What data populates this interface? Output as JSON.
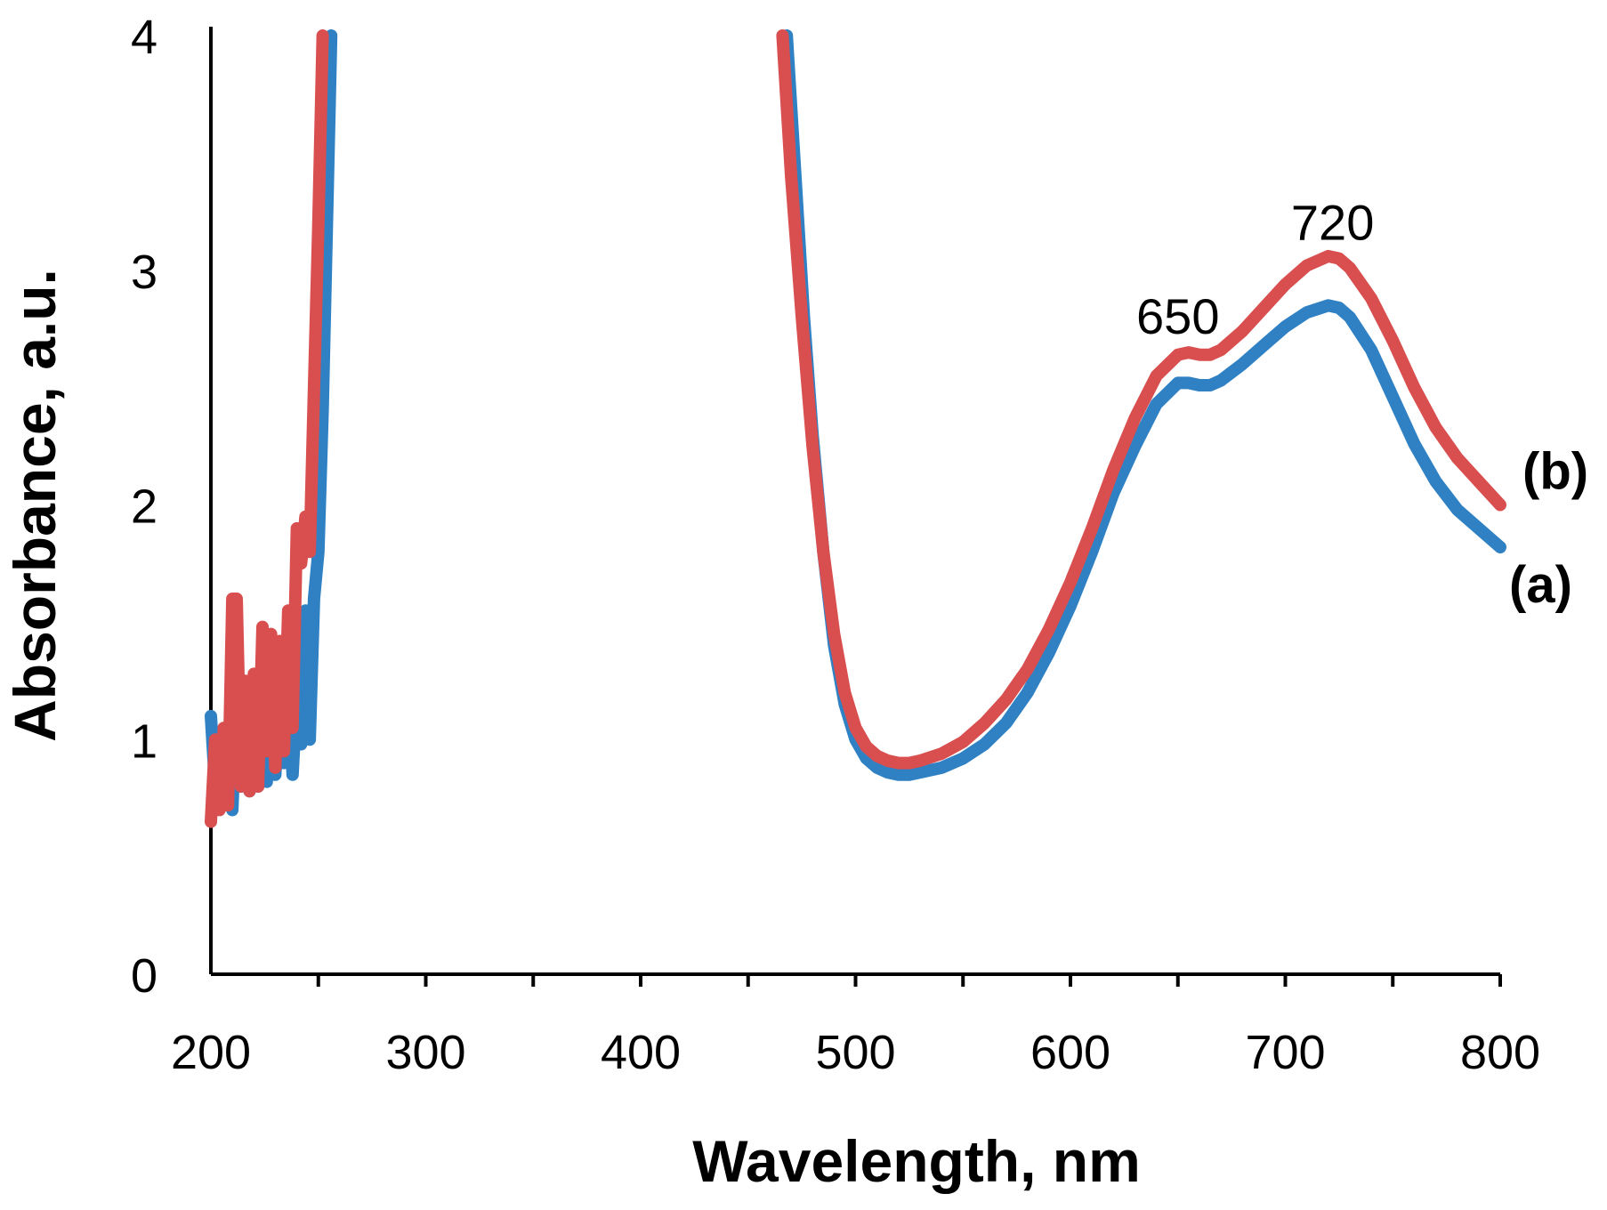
{
  "chart_data": {
    "type": "line",
    "title": "",
    "xlabel": "Wavelength, nm",
    "ylabel": "Absorbance, a.u.",
    "xlim": [
      200,
      800
    ],
    "ylim": [
      0,
      4
    ],
    "grid": false,
    "x_tick_labels": [
      "200",
      "300",
      "400",
      "500",
      "600",
      "700",
      "800"
    ],
    "x_tick_values": [
      200,
      300,
      400,
      500,
      600,
      700,
      800
    ],
    "x_minor_ticks": [
      250,
      350,
      450,
      550,
      650,
      750
    ],
    "y_tick_labels": [
      "0",
      "1",
      "2",
      "3",
      "4"
    ],
    "y_tick_values": [
      0,
      1,
      2,
      3,
      4
    ],
    "annotations": [
      {
        "text": "650",
        "x": 650,
        "y": 2.73
      },
      {
        "text": "720",
        "x": 722,
        "y": 3.13
      }
    ],
    "series": [
      {
        "name": "(a)",
        "color": "#2f81c3",
        "segments": [
          [
            [
              200,
              1.1
            ],
            [
              202,
              0.8
            ],
            [
              204,
              1.0
            ],
            [
              206,
              0.75
            ],
            [
              208,
              1.05
            ],
            [
              210,
              0.7
            ],
            [
              212,
              1.2
            ],
            [
              214,
              0.8
            ],
            [
              216,
              1.2
            ],
            [
              218,
              0.78
            ],
            [
              220,
              1.1
            ],
            [
              222,
              0.8
            ],
            [
              224,
              1.15
            ],
            [
              226,
              0.82
            ],
            [
              228,
              1.3
            ],
            [
              230,
              0.85
            ],
            [
              232,
              1.2
            ],
            [
              234,
              0.9
            ],
            [
              236,
              1.35
            ],
            [
              238,
              0.85
            ],
            [
              240,
              1.2
            ],
            [
              242,
              0.98
            ],
            [
              244,
              1.55
            ],
            [
              246,
              1.0
            ],
            [
              248,
              1.6
            ],
            [
              250,
              1.8
            ],
            [
              252,
              2.4
            ],
            [
              254,
              3.2
            ],
            [
              256,
              4.0
            ]
          ],
          [
            [
              468,
              4.0
            ],
            [
              472,
              3.4
            ],
            [
              476,
              2.8
            ],
            [
              480,
              2.3
            ],
            [
              485,
              1.8
            ],
            [
              490,
              1.4
            ],
            [
              495,
              1.15
            ],
            [
              500,
              1.0
            ],
            [
              505,
              0.92
            ],
            [
              510,
              0.88
            ],
            [
              515,
              0.86
            ],
            [
              520,
              0.85
            ],
            [
              525,
              0.85
            ],
            [
              530,
              0.86
            ],
            [
              540,
              0.88
            ],
            [
              550,
              0.92
            ],
            [
              560,
              0.98
            ],
            [
              570,
              1.07
            ],
            [
              580,
              1.2
            ],
            [
              590,
              1.37
            ],
            [
              600,
              1.57
            ],
            [
              610,
              1.8
            ],
            [
              620,
              2.05
            ],
            [
              630,
              2.25
            ],
            [
              640,
              2.43
            ],
            [
              650,
              2.52
            ],
            [
              655,
              2.52
            ],
            [
              660,
              2.51
            ],
            [
              665,
              2.51
            ],
            [
              670,
              2.53
            ],
            [
              680,
              2.6
            ],
            [
              690,
              2.68
            ],
            [
              700,
              2.76
            ],
            [
              710,
              2.82
            ],
            [
              720,
              2.85
            ],
            [
              725,
              2.84
            ],
            [
              730,
              2.8
            ],
            [
              740,
              2.66
            ],
            [
              750,
              2.46
            ],
            [
              760,
              2.26
            ],
            [
              770,
              2.1
            ],
            [
              780,
              1.98
            ],
            [
              790,
              1.9
            ],
            [
              800,
              1.82
            ]
          ]
        ]
      },
      {
        "name": "(b)",
        "color": "#d94f4f",
        "segments": [
          [
            [
              200,
              0.65
            ],
            [
              202,
              1.0
            ],
            [
              204,
              0.7
            ],
            [
              206,
              1.05
            ],
            [
              208,
              0.72
            ],
            [
              210,
              1.6
            ],
            [
              212,
              1.6
            ],
            [
              214,
              0.8
            ],
            [
              216,
              1.25
            ],
            [
              218,
              0.78
            ],
            [
              220,
              1.28
            ],
            [
              222,
              0.8
            ],
            [
              224,
              1.48
            ],
            [
              226,
              0.95
            ],
            [
              228,
              1.45
            ],
            [
              230,
              0.88
            ],
            [
              232,
              1.42
            ],
            [
              234,
              0.95
            ],
            [
              236,
              1.55
            ],
            [
              238,
              1.05
            ],
            [
              240,
              1.9
            ],
            [
              242,
              1.75
            ],
            [
              244,
              1.95
            ],
            [
              246,
              1.8
            ],
            [
              248,
              2.5
            ],
            [
              250,
              3.2
            ],
            [
              252,
              4.0
            ]
          ],
          [
            [
              466,
              4.0
            ],
            [
              470,
              3.4
            ],
            [
              475,
              2.8
            ],
            [
              480,
              2.25
            ],
            [
              485,
              1.8
            ],
            [
              490,
              1.45
            ],
            [
              495,
              1.2
            ],
            [
              500,
              1.05
            ],
            [
              505,
              0.97
            ],
            [
              510,
              0.93
            ],
            [
              515,
              0.91
            ],
            [
              520,
              0.9
            ],
            [
              525,
              0.9
            ],
            [
              530,
              0.91
            ],
            [
              540,
              0.94
            ],
            [
              550,
              0.99
            ],
            [
              560,
              1.07
            ],
            [
              570,
              1.17
            ],
            [
              580,
              1.3
            ],
            [
              590,
              1.47
            ],
            [
              600,
              1.67
            ],
            [
              610,
              1.9
            ],
            [
              620,
              2.15
            ],
            [
              630,
              2.37
            ],
            [
              640,
              2.55
            ],
            [
              650,
              2.64
            ],
            [
              655,
              2.65
            ],
            [
              660,
              2.64
            ],
            [
              665,
              2.64
            ],
            [
              670,
              2.66
            ],
            [
              680,
              2.74
            ],
            [
              690,
              2.84
            ],
            [
              700,
              2.94
            ],
            [
              710,
              3.02
            ],
            [
              720,
              3.06
            ],
            [
              725,
              3.05
            ],
            [
              730,
              3.01
            ],
            [
              740,
              2.88
            ],
            [
              750,
              2.7
            ],
            [
              760,
              2.5
            ],
            [
              770,
              2.33
            ],
            [
              780,
              2.2
            ],
            [
              790,
              2.1
            ],
            [
              800,
              2.0
            ]
          ]
        ]
      }
    ]
  }
}
